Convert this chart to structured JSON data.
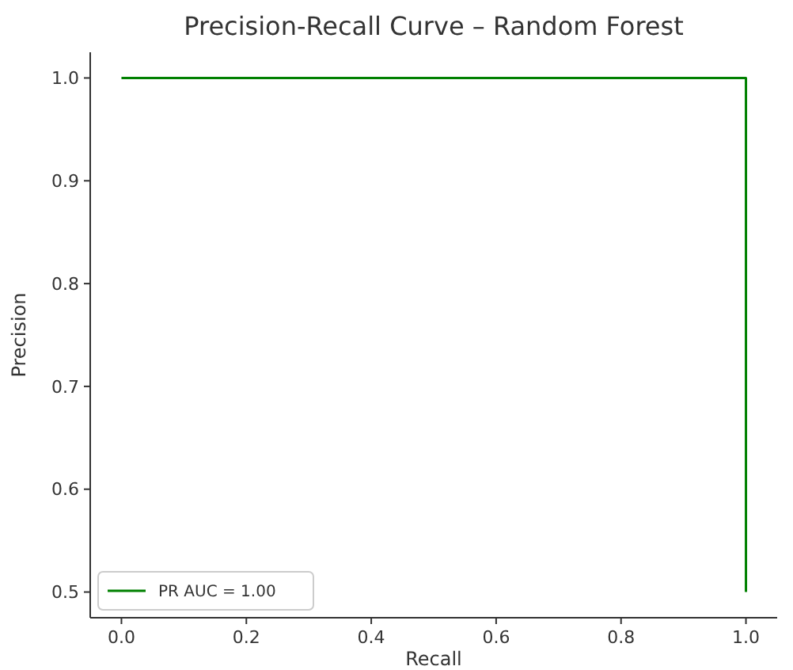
{
  "chart_data": {
    "type": "step",
    "title": "Precision-Recall Curve – Random Forest",
    "xlabel": "Recall",
    "ylabel": "Precision",
    "series": [
      {
        "name": "PR AUC = 1.00",
        "color": "#008000",
        "x": [
          0,
          1
        ],
        "values": [
          1,
          0.5
        ]
      }
    ],
    "xlim": [
      -0.05,
      1.05
    ],
    "xticks": [
      {
        "value": 0,
        "label": "0.0"
      },
      0.2,
      0.4,
      0.6,
      0.8,
      {
        "value": 1,
        "label": "1.0"
      }
    ],
    "ylim": [
      0.475,
      1.025
    ],
    "yticks": [
      0.5,
      0.6,
      0.7,
      0.8,
      0.9,
      {
        "value": 1,
        "label": "1.0"
      }
    ],
    "grid": false,
    "legend": "bottom left",
    "marker": "none",
    "line_style": "solid"
  }
}
